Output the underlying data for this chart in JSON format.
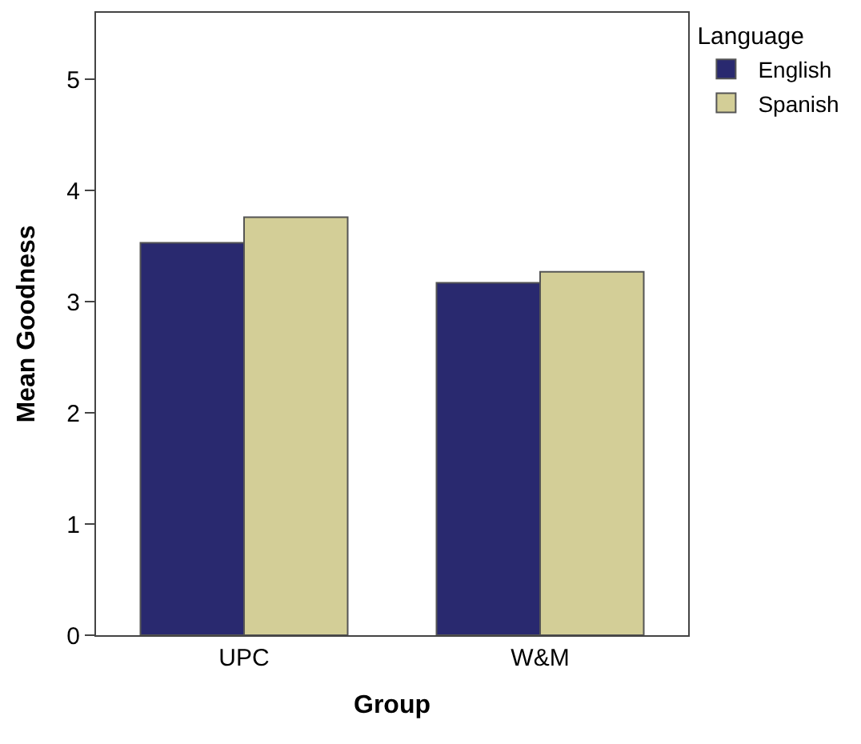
{
  "chart_data": {
    "type": "bar",
    "xlabel": "Group",
    "ylabel": "Mean Goodness",
    "legend_title": "Language",
    "categories": [
      "UPC",
      "W&M"
    ],
    "series": [
      {
        "name": "English",
        "color": "#29296f",
        "values": [
          3.53,
          3.17
        ]
      },
      {
        "name": "Spanish",
        "color": "#d3ce97",
        "values": [
          3.76,
          3.27
        ]
      }
    ],
    "ylim": [
      0,
      5.6
    ],
    "yticks": [
      0,
      1,
      2,
      3,
      4,
      5
    ],
    "legend": "top right"
  }
}
